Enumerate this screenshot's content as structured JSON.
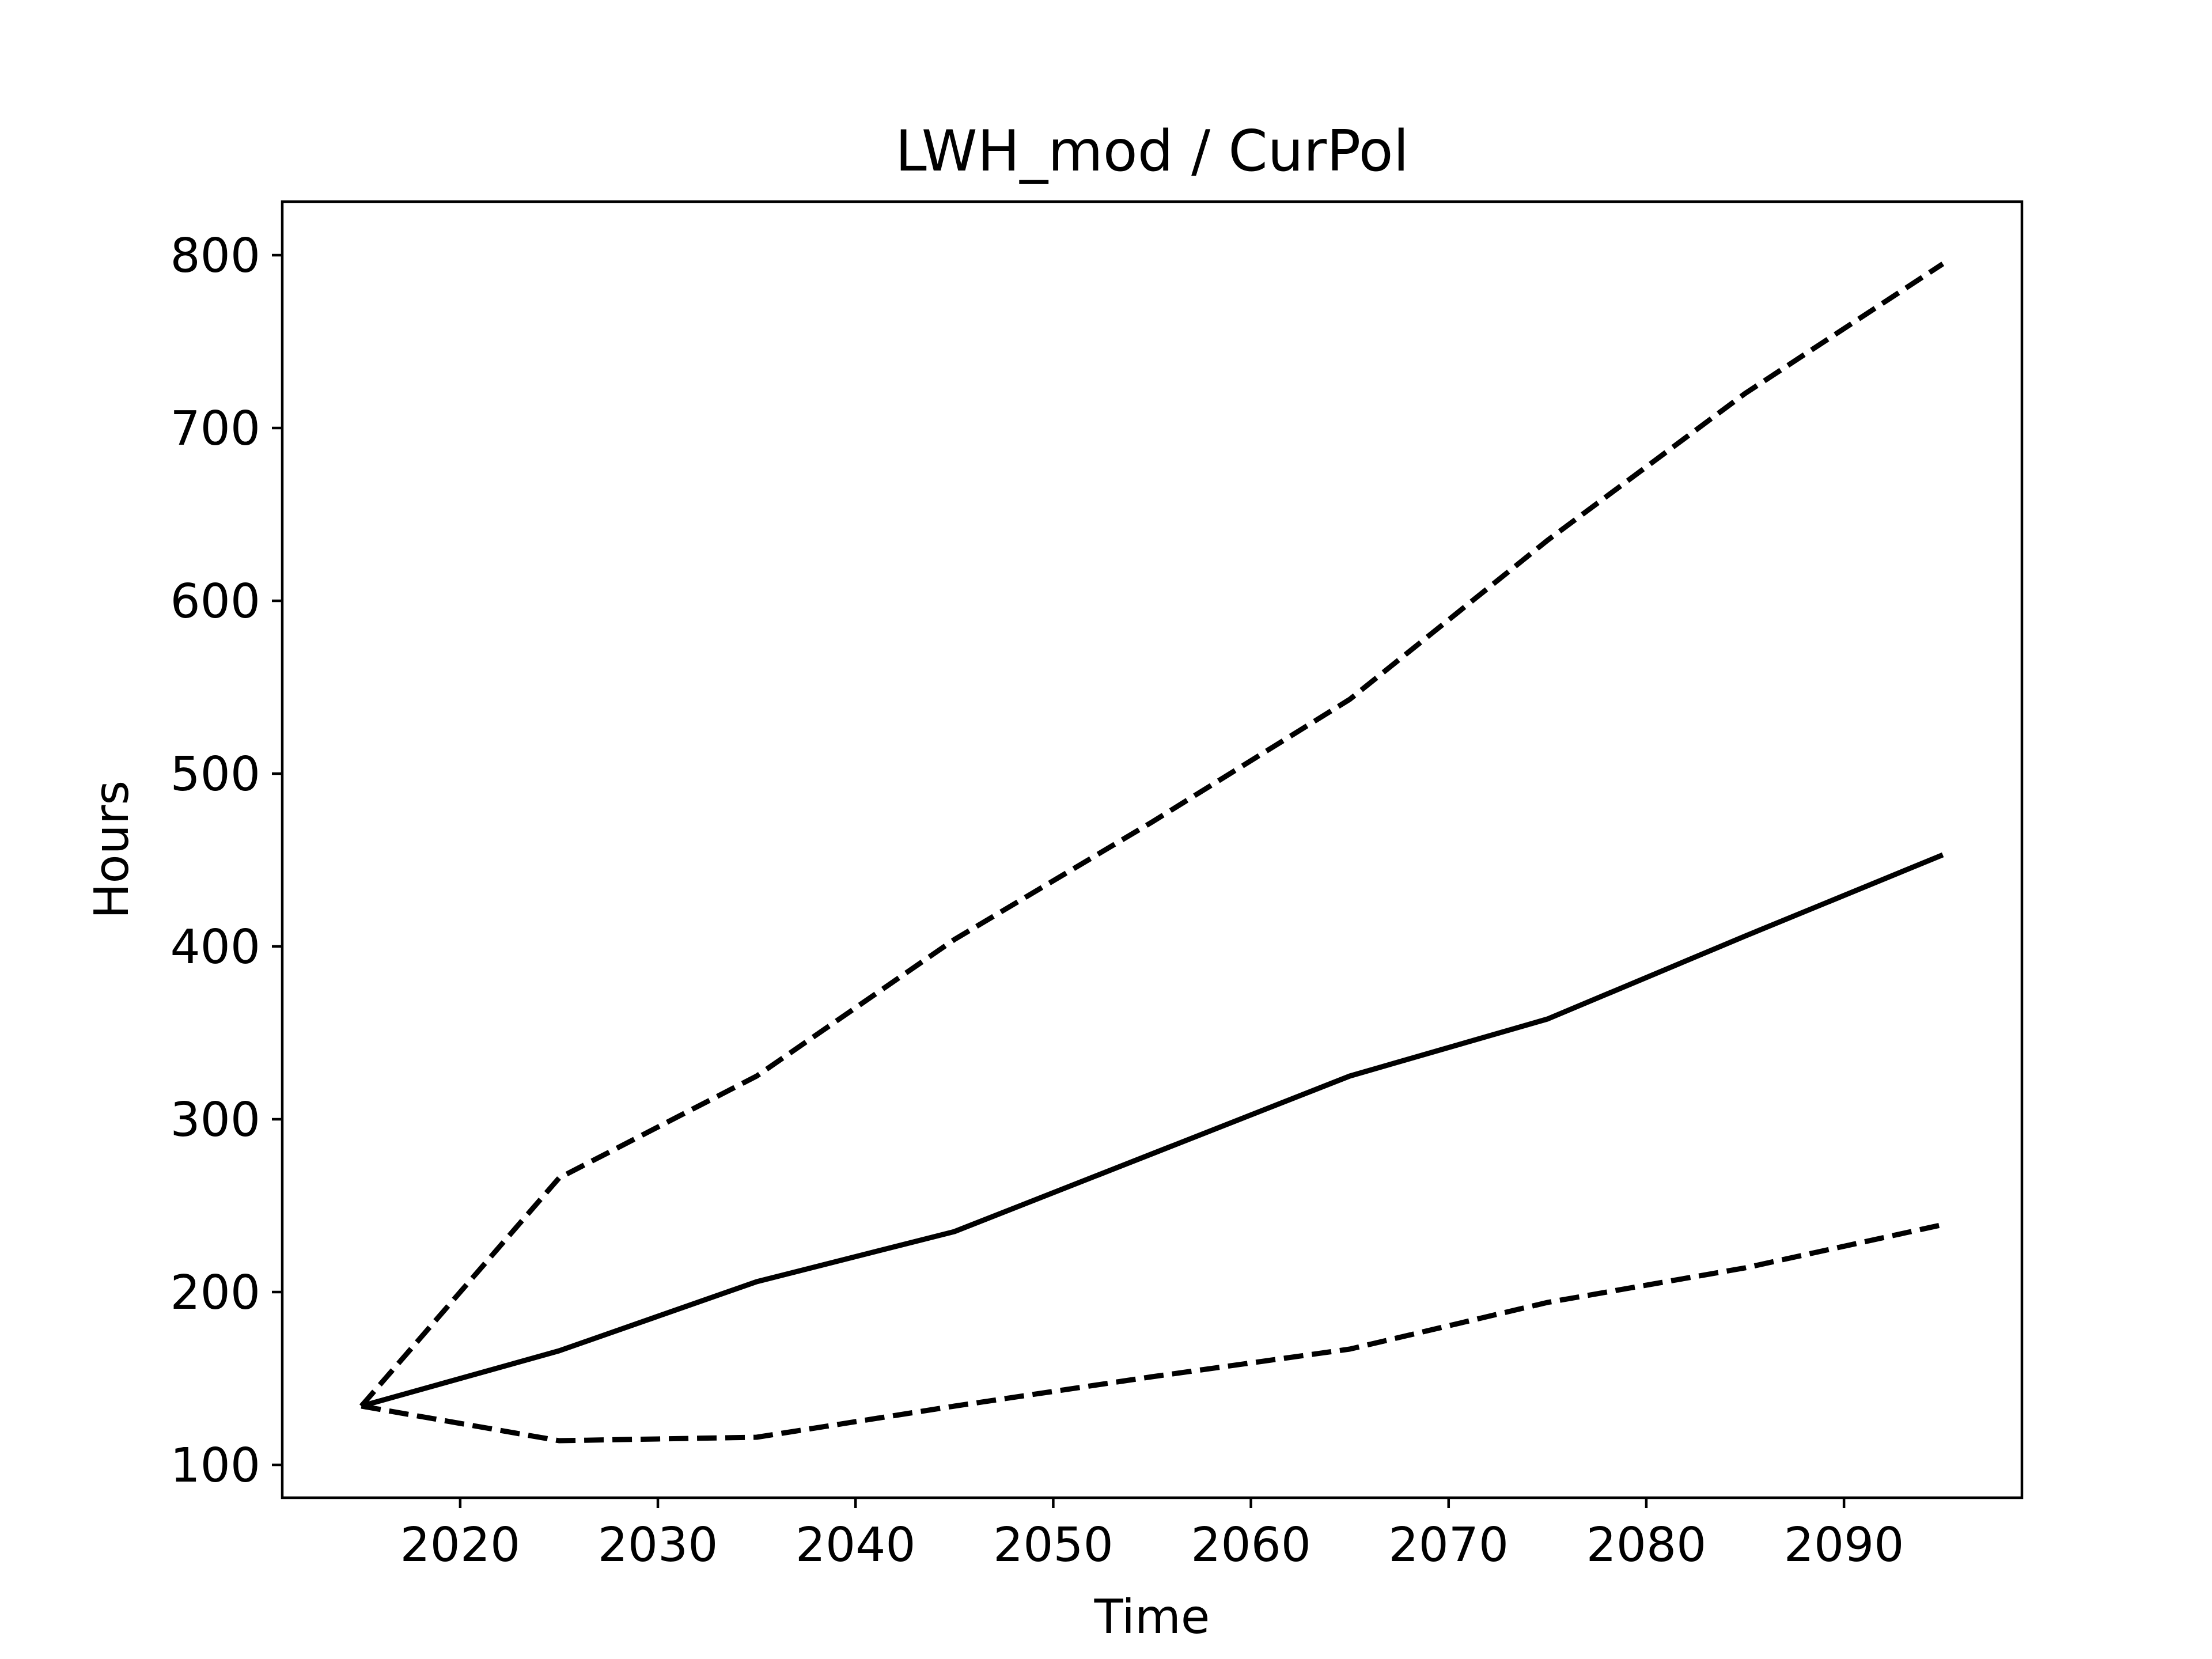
{
  "chart_data": {
    "type": "line",
    "title": "LWH_mod / CurPol",
    "xlabel": "Time",
    "ylabel": "Hours",
    "xlim": [
      2011,
      2099
    ],
    "ylim": [
      81,
      831
    ],
    "xticks": [
      2020,
      2030,
      2040,
      2050,
      2060,
      2070,
      2080,
      2090
    ],
    "yticks": [
      100,
      200,
      300,
      400,
      500,
      600,
      700,
      800
    ],
    "grid": false,
    "legend": "none",
    "x": [
      2015,
      2025,
      2035,
      2045,
      2055,
      2065,
      2075,
      2085,
      2095
    ],
    "series": [
      {
        "style": "dashed",
        "color": "#000000",
        "values": [
          134,
          266,
          325,
          404,
          472,
          543,
          635,
          720,
          795
        ]
      },
      {
        "style": "solid",
        "color": "#000000",
        "values": [
          134,
          166,
          206,
          235,
          280,
          325,
          358,
          406,
          453
        ]
      },
      {
        "style": "dashed",
        "color": "#000000",
        "values": [
          134,
          114,
          116,
          134,
          151,
          167,
          194,
          214,
          239
        ]
      }
    ]
  }
}
